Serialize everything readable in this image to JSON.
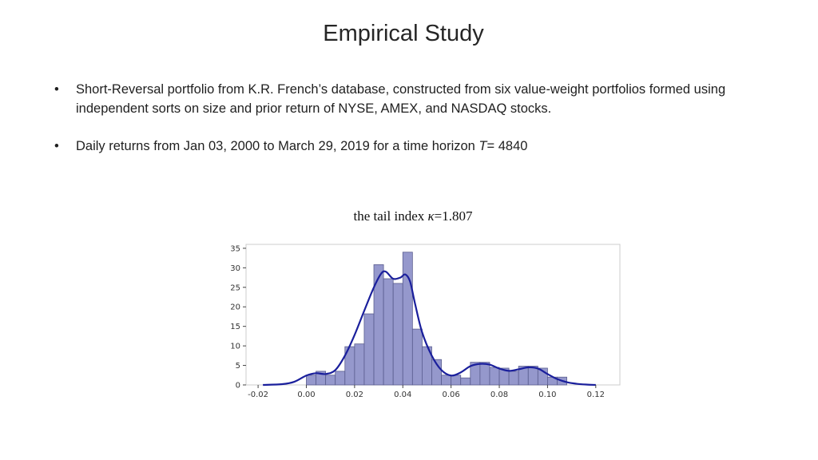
{
  "slide": {
    "title": "Empirical Study",
    "bullets": [
      {
        "symbol": "•",
        "text": "Short-Reversal portfolio from K.R. French’s database, constructed from six value-weight portfolios formed using independent sorts on size and prior return of NYSE, AMEX, and NASDAQ stocks."
      },
      {
        "symbol": "•",
        "text_before": "Daily returns from Jan 03, 2000 to March 29, 2019 for a time horizon ",
        "text_italic": "T",
        "text_after": "= 4840"
      }
    ],
    "caption": {
      "prefix": "the tail index ",
      "symbol": "κ",
      "suffix": "=1.807"
    }
  },
  "chart_data": {
    "type": "bar",
    "subtype": "histogram-with-kde",
    "title": "",
    "xlabel": "",
    "ylabel": "",
    "xlim": [
      -0.025,
      0.13
    ],
    "ylim": [
      0,
      36
    ],
    "xticks": [
      "-0.02",
      "0.00",
      "0.02",
      "0.04",
      "0.06",
      "0.08",
      "0.10",
      "0.12"
    ],
    "xtick_values": [
      -0.02,
      0.0,
      0.02,
      0.04,
      0.06,
      0.08,
      0.1,
      0.12
    ],
    "yticks": [
      "0",
      "5",
      "10",
      "15",
      "20",
      "25",
      "30",
      "35"
    ],
    "ytick_values": [
      0,
      5,
      10,
      15,
      20,
      25,
      30,
      35
    ],
    "grid": false,
    "colors": {
      "bar_fill": "#8f92c9",
      "bar_edge": "#5a5d8f",
      "kde_line": "#1a1f9c"
    },
    "bins": [
      {
        "x0": 0.0,
        "x1": 0.004,
        "value": 2.5
      },
      {
        "x0": 0.004,
        "x1": 0.008,
        "value": 3.5
      },
      {
        "x0": 0.008,
        "x1": 0.012,
        "value": 2.5
      },
      {
        "x0": 0.012,
        "x1": 0.016,
        "value": 3.5
      },
      {
        "x0": 0.016,
        "x1": 0.02,
        "value": 9.8
      },
      {
        "x0": 0.02,
        "x1": 0.024,
        "value": 10.5
      },
      {
        "x0": 0.024,
        "x1": 0.028,
        "value": 18.2
      },
      {
        "x0": 0.028,
        "x1": 0.032,
        "value": 30.8
      },
      {
        "x0": 0.032,
        "x1": 0.036,
        "value": 27.2
      },
      {
        "x0": 0.036,
        "x1": 0.04,
        "value": 26.0
      },
      {
        "x0": 0.04,
        "x1": 0.044,
        "value": 34.0
      },
      {
        "x0": 0.044,
        "x1": 0.048,
        "value": 14.3
      },
      {
        "x0": 0.048,
        "x1": 0.052,
        "value": 9.8
      },
      {
        "x0": 0.052,
        "x1": 0.056,
        "value": 6.5
      },
      {
        "x0": 0.056,
        "x1": 0.06,
        "value": 2.5
      },
      {
        "x0": 0.06,
        "x1": 0.064,
        "value": 2.5
      },
      {
        "x0": 0.064,
        "x1": 0.068,
        "value": 1.8
      },
      {
        "x0": 0.068,
        "x1": 0.072,
        "value": 5.8
      },
      {
        "x0": 0.072,
        "x1": 0.076,
        "value": 5.8
      },
      {
        "x0": 0.076,
        "x1": 0.08,
        "value": 4.5
      },
      {
        "x0": 0.08,
        "x1": 0.084,
        "value": 4.3
      },
      {
        "x0": 0.084,
        "x1": 0.088,
        "value": 3.5
      },
      {
        "x0": 0.088,
        "x1": 0.092,
        "value": 4.8
      },
      {
        "x0": 0.092,
        "x1": 0.096,
        "value": 4.8
      },
      {
        "x0": 0.096,
        "x1": 0.1,
        "value": 4.3
      },
      {
        "x0": 0.1,
        "x1": 0.104,
        "value": 2.0
      },
      {
        "x0": 0.104,
        "x1": 0.108,
        "value": 2.0
      }
    ],
    "kde": {
      "x": [
        -0.018,
        -0.01,
        -0.005,
        0.0,
        0.004,
        0.008,
        0.012,
        0.016,
        0.02,
        0.024,
        0.028,
        0.031,
        0.033,
        0.036,
        0.039,
        0.041,
        0.043,
        0.045,
        0.048,
        0.052,
        0.056,
        0.06,
        0.064,
        0.068,
        0.072,
        0.076,
        0.08,
        0.084,
        0.088,
        0.092,
        0.096,
        0.1,
        0.104,
        0.108,
        0.112,
        0.116,
        0.12
      ],
      "y": [
        0.0,
        0.2,
        0.8,
        2.4,
        3.0,
        2.8,
        3.8,
        7.5,
        12.8,
        19.0,
        25.0,
        28.5,
        29.0,
        27.2,
        27.5,
        28.3,
        26.5,
        21.0,
        13.5,
        7.5,
        3.8,
        2.4,
        3.2,
        4.8,
        5.4,
        5.2,
        4.2,
        3.6,
        4.0,
        4.5,
        4.2,
        2.8,
        1.5,
        0.7,
        0.3,
        0.1,
        0.0
      ]
    }
  }
}
